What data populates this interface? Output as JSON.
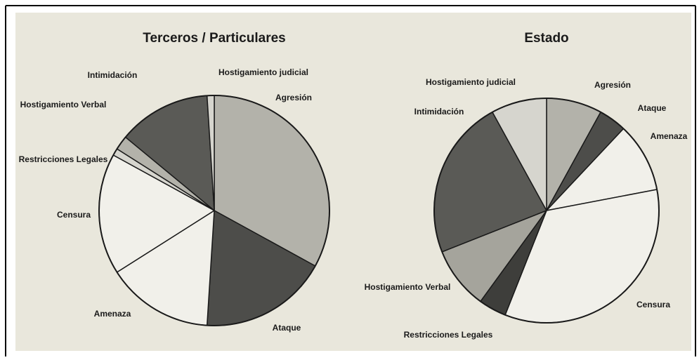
{
  "chart_data": [
    {
      "type": "pie",
      "title": "Terceros / Particulares",
      "categories": [
        "Agresión",
        "Ataque",
        "Amenaza",
        "Censura",
        "Restricciones Legales",
        "Hostigamiento Verbal",
        "Intimidación",
        "Hostigamiento judicial"
      ],
      "values": [
        33,
        18,
        15,
        17,
        1,
        2,
        13,
        1
      ],
      "colors": [
        "#b3b2aa",
        "#4d4d4a",
        "#f1f0ea",
        "#f1f0ea",
        "#d6d5ce",
        "#b3b2aa",
        "#5a5a56",
        "#d6d5ce"
      ]
    },
    {
      "type": "pie",
      "title": "Estado",
      "categories": [
        "Agresión",
        "Ataque",
        "Amenaza",
        "Censura",
        "Restricciones Legales",
        "Hostigamiento Verbal",
        "Intimidación",
        "Hostigamiento judicial"
      ],
      "values": [
        8,
        4,
        10,
        34,
        4,
        9,
        23,
        8
      ],
      "colors": [
        "#b3b2aa",
        "#4d4d4a",
        "#f1f0ea",
        "#f1f0ea",
        "#3e3e3b",
        "#a5a49c",
        "#5a5a56",
        "#d6d5ce"
      ]
    }
  ]
}
